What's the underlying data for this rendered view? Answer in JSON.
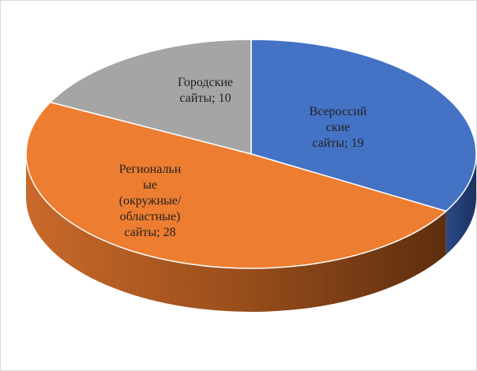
{
  "chart_data": {
    "type": "pie3d",
    "values": [
      19,
      28,
      10
    ],
    "value_labels": [
      "Всероссий\nские\nсайты; 19",
      "Региональн\nые\n(окружные/\nобластные)\nсайты; 28",
      "Городские\nсайты; 10"
    ],
    "colors": [
      "#4472c4",
      "#ed7d31",
      "#a5a5a5"
    ]
  }
}
